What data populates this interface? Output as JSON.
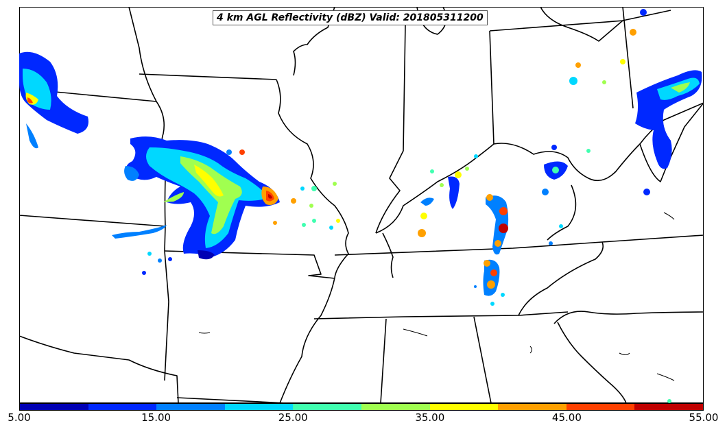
{
  "map": {
    "title": "4 km AGL Reflectivity (dBZ) Valid: 201805311200",
    "field": "reflectivity",
    "units": "dBZ",
    "valid_time": "201805311200"
  },
  "colorbar": {
    "tick_labels": [
      "5.00",
      "15.00",
      "25.00",
      "35.00",
      "45.00",
      "55.00"
    ],
    "colors": [
      "#0000b4",
      "#0028ff",
      "#0080ff",
      "#00d8ff",
      "#40ffb0",
      "#a0ff50",
      "#ffff00",
      "#ffa000",
      "#ff4000",
      "#c00000"
    ],
    "range": [
      5,
      55
    ]
  },
  "colors": {
    "border": "#000000",
    "background": "#ffffff"
  }
}
